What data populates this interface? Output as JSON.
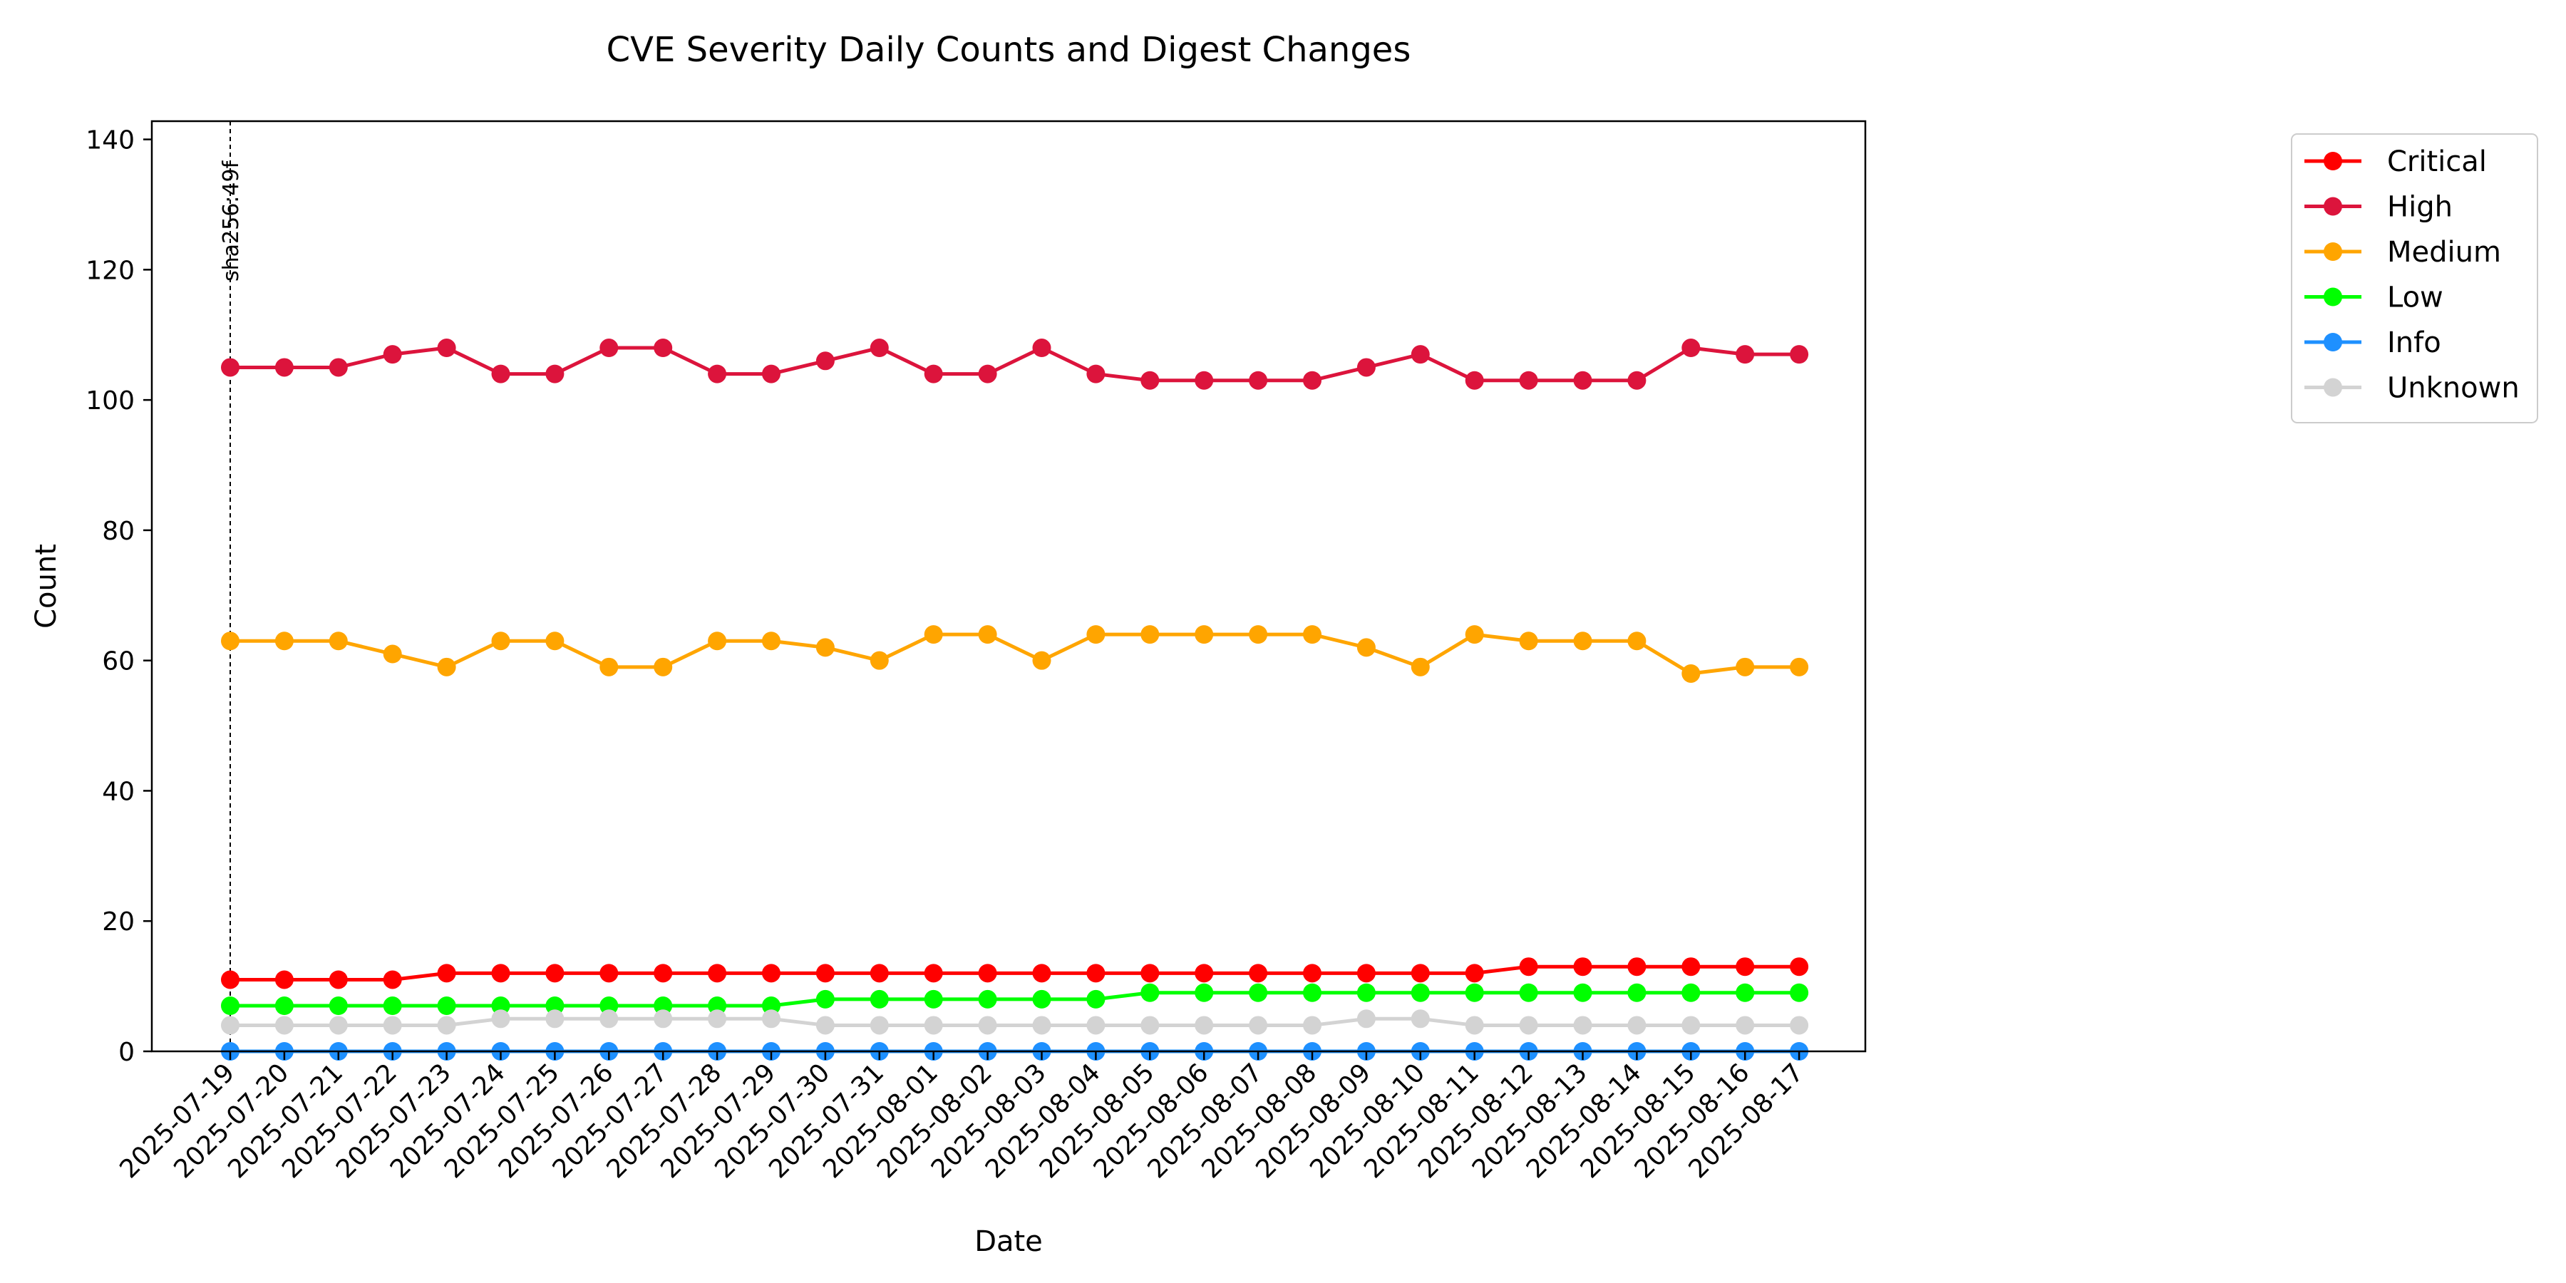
{
  "chart_data": {
    "type": "line",
    "title": "CVE Severity Daily Counts and Digest Changes",
    "xlabel": "Date",
    "ylabel": "Count",
    "ylim": [
      0,
      142.8
    ],
    "yticks": [
      0,
      20,
      40,
      60,
      80,
      100,
      120,
      140
    ],
    "grid": false,
    "legend_position": "outside-right",
    "categories": [
      "2025-07-19",
      "2025-07-20",
      "2025-07-21",
      "2025-07-22",
      "2025-07-23",
      "2025-07-24",
      "2025-07-25",
      "2025-07-26",
      "2025-07-27",
      "2025-07-28",
      "2025-07-29",
      "2025-07-30",
      "2025-07-31",
      "2025-08-01",
      "2025-08-02",
      "2025-08-03",
      "2025-08-04",
      "2025-08-05",
      "2025-08-06",
      "2025-08-07",
      "2025-08-08",
      "2025-08-09",
      "2025-08-10",
      "2025-08-11",
      "2025-08-12",
      "2025-08-13",
      "2025-08-14",
      "2025-08-15",
      "2025-08-16",
      "2025-08-17"
    ],
    "series": [
      {
        "name": "Critical",
        "color": "#ff0000",
        "values": [
          11,
          11,
          11,
          11,
          12,
          12,
          12,
          12,
          12,
          12,
          12,
          12,
          12,
          12,
          12,
          12,
          12,
          12,
          12,
          12,
          12,
          12,
          12,
          12,
          13,
          13,
          13,
          13,
          13,
          13
        ]
      },
      {
        "name": "High",
        "color": "#dc143c",
        "values": [
          105,
          105,
          105,
          107,
          108,
          104,
          104,
          108,
          108,
          104,
          104,
          106,
          108,
          104,
          104,
          108,
          104,
          103,
          103,
          103,
          103,
          105,
          107,
          103,
          103,
          103,
          103,
          108,
          107,
          107
        ]
      },
      {
        "name": "Medium",
        "color": "#ffa500",
        "values": [
          63,
          63,
          63,
          61,
          59,
          63,
          63,
          59,
          59,
          63,
          63,
          62,
          60,
          64,
          64,
          60,
          64,
          64,
          64,
          64,
          64,
          62,
          59,
          64,
          63,
          63,
          63,
          58,
          59,
          59
        ]
      },
      {
        "name": "Low",
        "color": "#00ff00",
        "values": [
          7,
          7,
          7,
          7,
          7,
          7,
          7,
          7,
          7,
          7,
          7,
          8,
          8,
          8,
          8,
          8,
          8,
          9,
          9,
          9,
          9,
          9,
          9,
          9,
          9,
          9,
          9,
          9,
          9,
          9
        ]
      },
      {
        "name": "Info",
        "color": "#1e90ff",
        "values": [
          0,
          0,
          0,
          0,
          0,
          0,
          0,
          0,
          0,
          0,
          0,
          0,
          0,
          0,
          0,
          0,
          0,
          0,
          0,
          0,
          0,
          0,
          0,
          0,
          0,
          0,
          0,
          0,
          0,
          0
        ]
      },
      {
        "name": "Unknown",
        "color": "#d3d3d3",
        "values": [
          4,
          4,
          4,
          4,
          4,
          5,
          5,
          5,
          5,
          5,
          5,
          4,
          4,
          4,
          4,
          4,
          4,
          4,
          4,
          4,
          4,
          5,
          5,
          4,
          4,
          4,
          4,
          4,
          4,
          4
        ]
      }
    ],
    "annotations": [
      {
        "x": "2025-07-19",
        "text": "sha256:49f",
        "style": "dashed-vertical-line"
      }
    ]
  }
}
